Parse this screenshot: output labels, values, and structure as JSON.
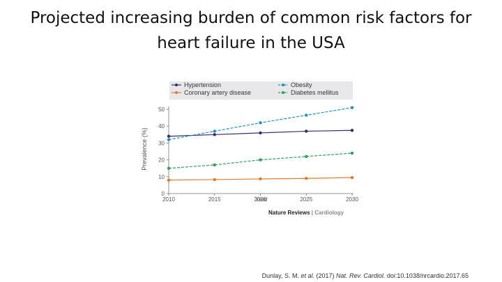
{
  "slide": {
    "title_line1": "Projected increasing burden of common risk factors for",
    "title_line2": "heart failure in the USA"
  },
  "footer": {
    "journal": "Nature Reviews",
    "separator": " | ",
    "section": "Cardiology"
  },
  "credit": {
    "part1": "Dunlay, S. M. ",
    "part2": "et al.",
    "part3": " (2017) ",
    "part4": "Nat. Rev. Cardiol.",
    "part5": " doi:10.1038/nrcardio.2017.65"
  },
  "colors": {
    "hypertension": "#3b2a6e",
    "obesity": "#1f8fc7",
    "cad": "#e07b2c",
    "diabetes": "#2aa35a",
    "legend_bg": "#e8e8ea",
    "axis": "#777777",
    "brand_gray": "#8a8a8a"
  },
  "chart_data": {
    "type": "line",
    "xlabel": "Year",
    "ylabel": "Prevalence (%)",
    "x": [
      2010,
      2015,
      2020,
      2025,
      2030
    ],
    "xticks": [
      "2010",
      "2015",
      "2020",
      "2025",
      "2030"
    ],
    "yticks": [
      "0",
      "10",
      "20",
      "30",
      "40",
      "50"
    ],
    "ylim": [
      0,
      50
    ],
    "legend_position": "top",
    "series": [
      {
        "key": "hypertension",
        "name": "Hypertension",
        "values": [
          34,
          35,
          36,
          37,
          37.5
        ],
        "dash": "solid",
        "legend_row": 0,
        "legend_col": 0
      },
      {
        "key": "obesity",
        "name": "Obesity",
        "values": [
          32,
          37,
          42,
          46.5,
          51
        ],
        "dash": "dashed",
        "legend_row": 0,
        "legend_col": 1
      },
      {
        "key": "cad",
        "name": "Coronary artery disease",
        "values": [
          8,
          8.3,
          8.7,
          9,
          9.5
        ],
        "dash": "solid",
        "legend_row": 1,
        "legend_col": 0
      },
      {
        "key": "diabetes",
        "name": "Diabetes mellitus",
        "values": [
          15,
          17,
          20,
          22,
          24
        ],
        "dash": "dashed",
        "legend_row": 1,
        "legend_col": 1
      }
    ]
  }
}
